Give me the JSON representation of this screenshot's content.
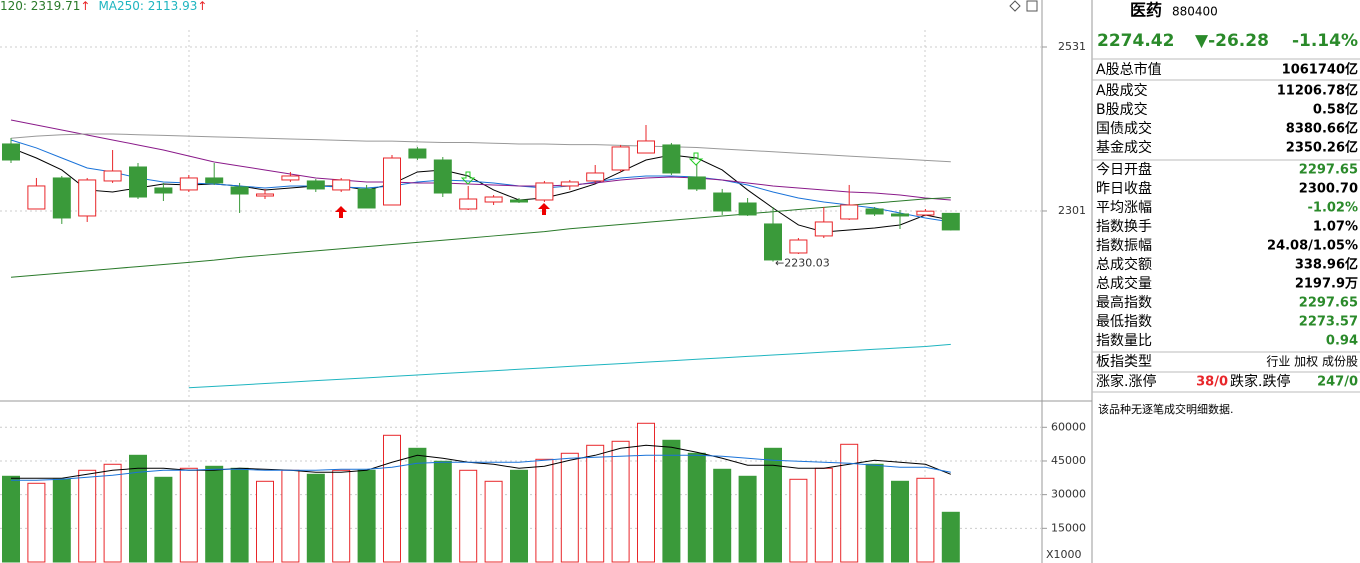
{
  "chart_data": [
    {
      "type": "candlestick",
      "legend": [
        {
          "text": "120: 2319.71",
          "color": "#2a7a2a"
        },
        {
          "text": "MA250: 2113.93",
          "color": "#1fb5c0"
        }
      ],
      "legend_arrow": "↑",
      "legend_arrow_color": "#e8262a",
      "ylim": [
        2034.5,
        2596.9
      ],
      "yticks": [
        2531,
        2301
      ],
      "grid": true,
      "up_color": "#e8262a",
      "down_color": "#3a9a3a",
      "open": [
        2395.0,
        2303.8,
        2347.3,
        2294.0,
        2343.1,
        2362.7,
        2333.3,
        2330.5,
        2347.3,
        2334.7,
        2322.0,
        2344.5,
        2343.1,
        2330.5,
        2331.9,
        2309.4,
        2387.9,
        2372.5,
        2303.8,
        2313.6,
        2316.4,
        2316.4,
        2336.1,
        2343.1,
        2358.5,
        2382.3,
        2393.6,
        2348.7,
        2326.2,
        2312.2,
        2282.8,
        2242.1,
        2266.0,
        2289.8,
        2303.8,
        2296.8,
        2295.4,
        2297.65
      ],
      "high": [
        2403.4,
        2347.3,
        2350.1,
        2347.3,
        2386.5,
        2368.3,
        2340.3,
        2351.5,
        2368.3,
        2340.3,
        2331.9,
        2355.7,
        2345.9,
        2347.3,
        2337.5,
        2379.5,
        2390.8,
        2376.7,
        2336.1,
        2323.4,
        2319.2,
        2343.1,
        2344.5,
        2365.5,
        2393.6,
        2421.6,
        2396.4,
        2366.9,
        2331.9,
        2319.2,
        2306.6,
        2263.1,
        2306.6,
        2337.5,
        2306.6,
        2302.4,
        2303.8,
        2297.65
      ],
      "low": [
        2368.3,
        2303.8,
        2282.8,
        2285.6,
        2340.3,
        2317.8,
        2315.0,
        2327.6,
        2337.5,
        2298.2,
        2317.8,
        2341.7,
        2327.6,
        2327.6,
        2305.2,
        2309.4,
        2372.5,
        2320.6,
        2302.4,
        2309.4,
        2312.2,
        2313.6,
        2330.5,
        2340.3,
        2355.7,
        2382.3,
        2351.5,
        2329.0,
        2295.4,
        2294.0,
        2230.03,
        2240.7,
        2263.1,
        2288.4,
        2294.0,
        2275.8,
        2294.0,
        2273.57
      ],
      "close": [
        2372.5,
        2336.1,
        2291.2,
        2344.5,
        2357.1,
        2320.6,
        2326.2,
        2347.3,
        2340.3,
        2324.8,
        2324.8,
        2350.1,
        2331.9,
        2344.5,
        2305.2,
        2375.3,
        2375.3,
        2326.2,
        2317.8,
        2320.6,
        2313.6,
        2340.3,
        2341.7,
        2354.3,
        2390.8,
        2399.2,
        2354.3,
        2331.9,
        2301,
        2295.4,
        2232.3,
        2260.3,
        2285.6,
        2309.4,
        2296.8,
        2294.0,
        2300.7,
        2274.42
      ],
      "annotation": {
        "text": "←2230.03",
        "index": 30
      },
      "series": [
        {
          "color": "#000000",
          "values": [
            2389.4,
            2375.3,
            2358.5,
            2330.5,
            2327.6,
            2333.3,
            2338.9,
            2337.5,
            2338.9,
            2336.1,
            2330.5,
            2333.3,
            2336.1,
            2336.1,
            2330.5,
            2338.9,
            2355.7,
            2358.5,
            2350.1,
            2330.5,
            2316.4,
            2319.2,
            2327.6,
            2338.9,
            2355.7,
            2372.5,
            2379.5,
            2375.3,
            2358.5,
            2330.5,
            2305.2,
            2281.4,
            2271.5,
            2274.4,
            2277.2,
            2281.4,
            2295.4,
            2288.4
          ]
        },
        {
          "color": "#1a73d9",
          "values": [
            2400.6,
            2389.4,
            2375.3,
            2361.3,
            2355.7,
            2347.3,
            2341.7,
            2340.3,
            2338.9,
            2336.1,
            2333.3,
            2336.1,
            2336.1,
            2334.7,
            2333.3,
            2336.1,
            2341.7,
            2344.5,
            2343.1,
            2340.3,
            2336.1,
            2333.3,
            2336.1,
            2341.7,
            2347.3,
            2350.1,
            2350.1,
            2348.7,
            2344.5,
            2337.5,
            2327.6,
            2319.2,
            2313.6,
            2309.4,
            2305.2,
            2298.2,
            2291.2,
            2285.6
          ]
        },
        {
          "color": "#8a1a8a",
          "values": [
            2428.6,
            2421.6,
            2414.6,
            2407.6,
            2400.6,
            2393.6,
            2386.5,
            2378.1,
            2369.7,
            2364.1,
            2358.5,
            2352.9,
            2347.3,
            2344.5,
            2341.7,
            2341.7,
            2340.3,
            2340.3,
            2338.9,
            2337.5,
            2336.1,
            2336.1,
            2337.5,
            2340.3,
            2344.5,
            2347.3,
            2348.7,
            2347.3,
            2344.5,
            2340.3,
            2336.1,
            2333.3,
            2330.5,
            2327.6,
            2326.2,
            2323.4,
            2319.2,
            2316.4
          ]
        },
        {
          "color": "#999999",
          "values": [
            2403,
            2406,
            2408,
            2409,
            2409,
            2408,
            2407,
            2406,
            2405,
            2404,
            2403,
            2402,
            2401,
            2400,
            2399,
            2399,
            2398,
            2397,
            2397,
            2396,
            2395,
            2395,
            2394,
            2394,
            2393,
            2392,
            2391,
            2390,
            2388,
            2386,
            2384,
            2382,
            2380,
            2378,
            2376,
            2374,
            2372,
            2370
          ]
        },
        {
          "color": "#2a7a2a",
          "values": [
            2208,
            2211,
            2214,
            2217,
            2220,
            2223,
            2226,
            2229,
            2232,
            2236,
            2239,
            2242,
            2245,
            2248,
            2251,
            2254,
            2257,
            2260,
            2263,
            2266,
            2269,
            2272,
            2276,
            2279,
            2282,
            2285,
            2288,
            2291,
            2294,
            2297,
            2300,
            2303,
            2306,
            2309,
            2312,
            2315,
            2318,
            2319.71
          ]
        },
        {
          "color": "#1fb5c0",
          "values": [
            null,
            null,
            null,
            null,
            null,
            null,
            null,
            2053,
            2055,
            2057,
            2059,
            2061,
            2063,
            2065,
            2067,
            2069,
            2071,
            2073,
            2075,
            2077,
            2079,
            2081,
            2083,
            2085,
            2087,
            2089,
            2091,
            2093,
            2095,
            2097,
            2099,
            2101,
            2103,
            2105,
            2107,
            2109,
            2111,
            2113.93
          ]
        }
      ]
    },
    {
      "type": "bar",
      "ylim": [
        0,
        71270
      ],
      "yticks": [
        60000,
        45000,
        30000,
        15000
      ],
      "unit_label": "X1000",
      "grid": true,
      "values": [
        38180,
        35060,
        36840,
        40850,
        43530,
        47530,
        37730,
        41740,
        42630,
        41740,
        35950,
        40850,
        39070,
        40850,
        40850,
        56440,
        50650,
        44860,
        40850,
        35950,
        40850,
        45750,
        48430,
        51990,
        53770,
        61790,
        54220,
        48430,
        41300,
        38180,
        50650,
        36840,
        41740,
        52430,
        43530,
        35950,
        37290,
        22140
      ],
      "series": [
        {
          "color": "#000000",
          "values": [
            37290,
            37290,
            37290,
            39070,
            40850,
            41740,
            41740,
            40850,
            40850,
            41740,
            41300,
            40850,
            39960,
            39960,
            40850,
            44420,
            47530,
            46200,
            44420,
            43530,
            41740,
            42630,
            45310,
            47530,
            50650,
            51990,
            51100,
            48870,
            46200,
            43080,
            43080,
            41740,
            41740,
            43530,
            45310,
            44420,
            43530,
            39070
          ]
        },
        {
          "color": "#1a73d9",
          "values": [
            36400,
            36400,
            36840,
            37730,
            38620,
            39960,
            40850,
            40850,
            41300,
            41300,
            40850,
            40850,
            40850,
            41300,
            41300,
            42190,
            43970,
            44420,
            44420,
            44420,
            44420,
            45310,
            46200,
            46640,
            47090,
            47530,
            47530,
            47530,
            47090,
            46200,
            45310,
            44860,
            44420,
            43970,
            43080,
            42190,
            42190,
            39960
          ]
        }
      ]
    }
  ],
  "panel": {
    "name": "医药",
    "code": "880400",
    "price": "2274.42",
    "change": "▼-26.28",
    "pct": "-1.14%",
    "rows": [
      {
        "label": "A股总市值",
        "value": "1061740亿",
        "color": "#000000"
      },
      {
        "label": "A股成交",
        "value": "11206.78亿",
        "color": "#000000"
      },
      {
        "label": "B股成交",
        "value": "0.58亿",
        "color": "#000000"
      },
      {
        "label": "国债成交",
        "value": "8380.66亿",
        "color": "#000000"
      },
      {
        "label": "基金成交",
        "value": "2350.26亿",
        "color": "#000000"
      },
      {
        "label": "今日开盘",
        "value": "2297.65",
        "color": "#2a8a2a"
      },
      {
        "label": "昨日收盘",
        "value": "2300.70",
        "color": "#000000"
      },
      {
        "label": "平均涨幅",
        "value": "-1.02%",
        "color": "#2a8a2a"
      },
      {
        "label": "指数换手",
        "value": "1.07%",
        "color": "#000000"
      },
      {
        "label": "指数振幅",
        "value": "24.08/1.05%",
        "color": "#000000"
      },
      {
        "label": "总成交额",
        "value": "338.96亿",
        "color": "#000000"
      },
      {
        "label": "总成交量",
        "value": "2197.9万",
        "color": "#000000"
      },
      {
        "label": "最高指数",
        "value": "2297.65",
        "color": "#2a8a2a"
      },
      {
        "label": "最低指数",
        "value": "2273.57",
        "color": "#2a8a2a"
      },
      {
        "label": "指数量比",
        "value": "0.94",
        "color": "#2a8a2a"
      }
    ],
    "type_label": "板指类型",
    "type_value": "行业 加权 成份股",
    "up_label": "涨家.涨停",
    "up_value": "38/0",
    "down_label": "跌家.跌停",
    "down_value": "247/0",
    "note": "该品种无逐笔成交明细数据."
  }
}
